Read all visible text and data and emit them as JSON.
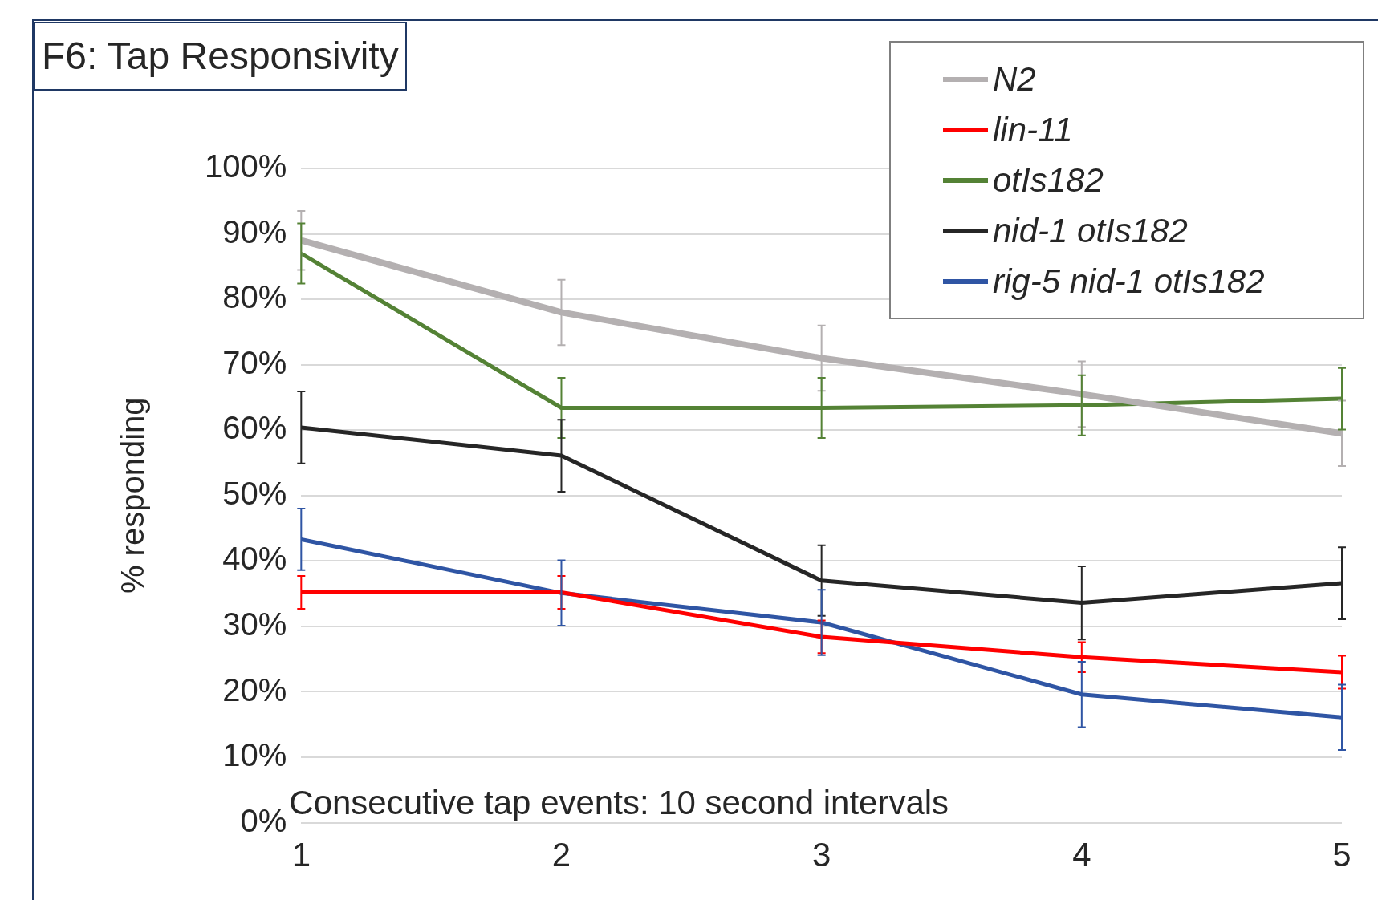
{
  "chart_data": {
    "type": "line",
    "title": "F6: Tap Responsivity",
    "xlabel": "Consecutive tap events: 10 second intervals",
    "ylabel": "% responding",
    "x": [
      1,
      2,
      3,
      4,
      5
    ],
    "xlim": [
      1,
      5
    ],
    "xticks": [
      1,
      2,
      3,
      4,
      5
    ],
    "ylim": [
      0,
      100
    ],
    "yticks": [
      {
        "value": 0,
        "label": "0%"
      },
      {
        "value": 10,
        "label": "10%"
      },
      {
        "value": 20,
        "label": "20%"
      },
      {
        "value": 30,
        "label": "30%"
      },
      {
        "value": 40,
        "label": "40%"
      },
      {
        "value": 50,
        "label": "50%"
      },
      {
        "value": 60,
        "label": "60%"
      },
      {
        "value": 70,
        "label": "70%"
      },
      {
        "value": 80,
        "label": "80%"
      },
      {
        "value": 90,
        "label": "90%"
      },
      {
        "value": 100,
        "label": "100%"
      }
    ],
    "grid": "y",
    "legend": "top right",
    "series": [
      {
        "name": "N2",
        "color": "#b4b0b1",
        "values": [
          89,
          78,
          71,
          65.5,
          59.5
        ],
        "errors": [
          4.5,
          5,
          5,
          5,
          5
        ]
      },
      {
        "name": "lin-11",
        "color": "#ff0000",
        "values": [
          35.2,
          35.2,
          28.4,
          25.3,
          23
        ],
        "errors": [
          2.5,
          2.5,
          2.5,
          2.3,
          2.5
        ]
      },
      {
        "name": "otIs182",
        "color": "#548235",
        "values": [
          87,
          63.4,
          63.4,
          63.8,
          64.8
        ],
        "errors": [
          4.6,
          4.6,
          4.6,
          4.6,
          4.7
        ]
      },
      {
        "name": "nid-1 otIs182",
        "color": "#262626",
        "values": [
          60.4,
          56.1,
          37,
          33.6,
          36.6
        ],
        "errors": [
          5.5,
          5.5,
          5.4,
          5.6,
          5.5
        ]
      },
      {
        "name": "rig-5 nid-1 otIs182",
        "color": "#2f55a4",
        "values": [
          43.3,
          35.1,
          30.6,
          19.6,
          16.1
        ],
        "errors": [
          4.7,
          5,
          5,
          5,
          5
        ]
      }
    ]
  }
}
